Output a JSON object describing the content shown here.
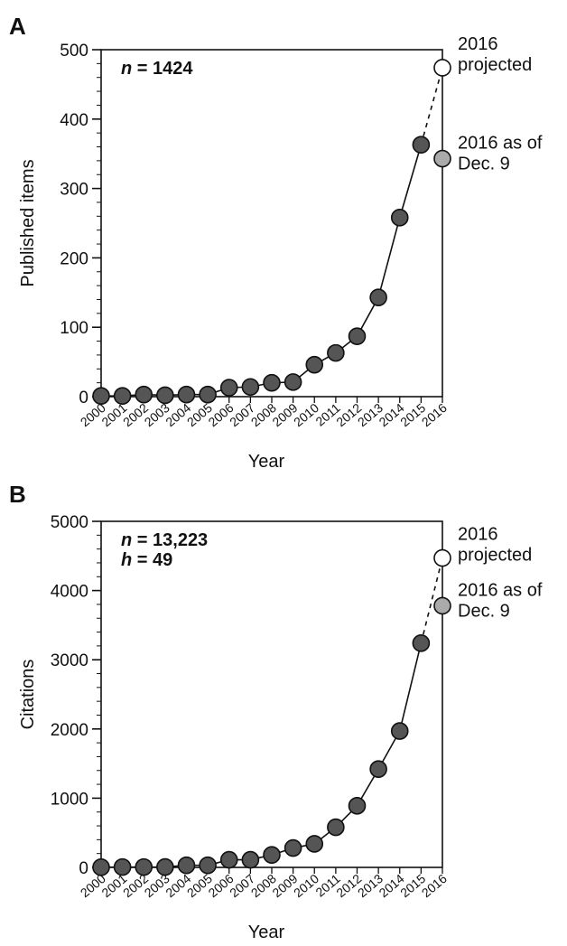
{
  "chart_data": [
    {
      "panel": "A",
      "type": "line",
      "xlabel": "Year",
      "ylabel": "Published items",
      "ylim": [
        0,
        500
      ],
      "yticks": [
        "0",
        "100",
        "200",
        "300",
        "400",
        "500"
      ],
      "categories": [
        "2000",
        "2001",
        "2002",
        "2003",
        "2004",
        "2005",
        "2006",
        "2007",
        "2008",
        "2009",
        "2010",
        "2011",
        "2012",
        "2013",
        "2014",
        "2015",
        "2016"
      ],
      "stats": [
        {
          "label": "n",
          "value": " = 1424"
        }
      ],
      "series": [
        {
          "x": [
            "2000",
            "2001",
            "2002",
            "2003",
            "2004",
            "2005",
            "2006",
            "2007",
            "2008",
            "2009",
            "2010",
            "2011",
            "2012",
            "2013",
            "2014",
            "2015"
          ],
          "values": [
            1,
            1,
            3,
            2,
            3,
            3,
            13,
            14,
            20,
            21,
            46,
            63,
            87,
            143,
            258,
            363
          ],
          "color": "#555555"
        }
      ],
      "annotations": [
        {
          "year": "2016",
          "value": 474,
          "lines": [
            "2016",
            "projected"
          ],
          "color": "#ffffff"
        },
        {
          "year": "2016",
          "value": 343,
          "lines": [
            "2016 as of",
            "Dec. 9"
          ],
          "color": "#aaaaaa"
        }
      ],
      "grid": false
    },
    {
      "panel": "B",
      "type": "line",
      "xlabel": "Year",
      "ylabel": "Citations",
      "ylim": [
        0,
        5000
      ],
      "yticks": [
        "0",
        "1000",
        "2000",
        "3000",
        "4000",
        "5000"
      ],
      "categories": [
        "2000",
        "2001",
        "2002",
        "2003",
        "2004",
        "2005",
        "2006",
        "2007",
        "2008",
        "2009",
        "2010",
        "2011",
        "2012",
        "2013",
        "2014",
        "2015",
        "2016"
      ],
      "stats": [
        {
          "label": "n",
          "value": " = 13,223"
        },
        {
          "label": "h",
          "value": " = 49"
        }
      ],
      "series": [
        {
          "x": [
            "2000",
            "2001",
            "2002",
            "2003",
            "2004",
            "2005",
            "2006",
            "2007",
            "2008",
            "2009",
            "2010",
            "2011",
            "2012",
            "2013",
            "2014",
            "2015"
          ],
          "values": [
            2,
            5,
            5,
            6,
            30,
            30,
            110,
            110,
            180,
            280,
            340,
            580,
            890,
            1420,
            1970,
            3240
          ],
          "color": "#555555"
        }
      ],
      "annotations": [
        {
          "year": "2016",
          "value": 4470,
          "lines": [
            "2016",
            "projected"
          ],
          "color": "#ffffff"
        },
        {
          "year": "2016",
          "value": 3780,
          "lines": [
            "2016 as of",
            "Dec. 9"
          ],
          "color": "#aaaaaa"
        }
      ],
      "grid": false
    }
  ]
}
